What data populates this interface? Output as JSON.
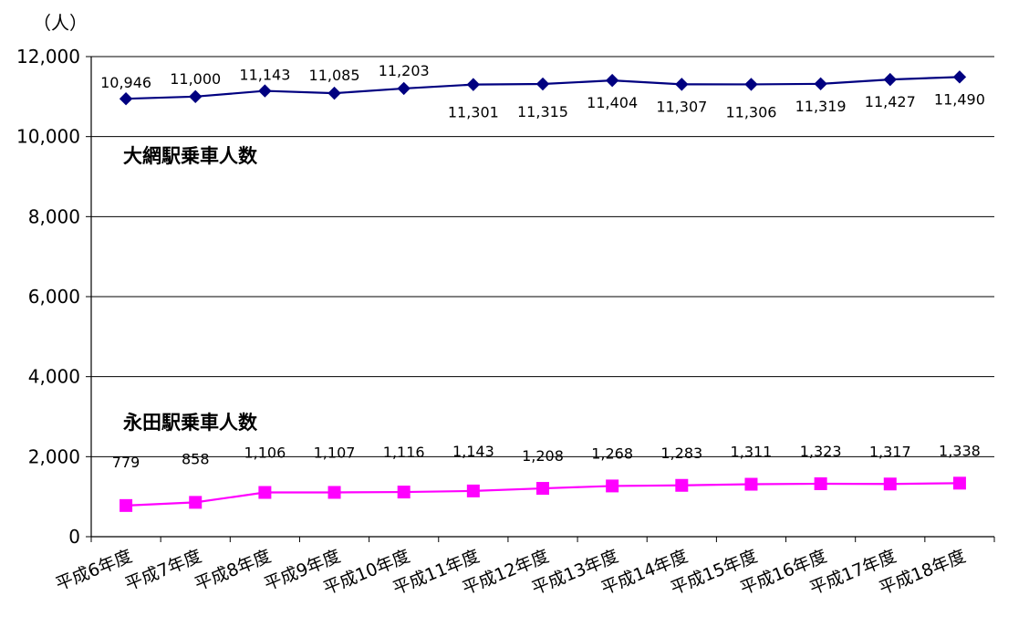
{
  "chart_data": {
    "type": "line",
    "unit_label": "（人）",
    "y_ticks": [
      "0",
      "2,000",
      "4,000",
      "6,000",
      "8,000",
      "10,000",
      "12,000"
    ],
    "ylim": [
      0,
      12000
    ],
    "grid": true,
    "categories": [
      "平成6年度",
      "平成7年度",
      "平成8年度",
      "平成9年度",
      "平成10年度",
      "平成11年度",
      "平成12年度",
      "平成13年度",
      "平成14年度",
      "平成15年度",
      "平成16年度",
      "平成17年度",
      "平成18年度"
    ],
    "series": [
      {
        "name": "大網駅乗車人数",
        "color": "#000080",
        "marker": "diamond",
        "values": [
          10946,
          11000,
          11143,
          11085,
          11203,
          11301,
          11315,
          11404,
          11307,
          11306,
          11319,
          11427,
          11490
        ],
        "labels": [
          "10,946",
          "11,000",
          "11,143",
          "11,085",
          "11,203",
          "11,301",
          "11,315",
          "11,404",
          "11,307",
          "11,306",
          "11,319",
          "11,427",
          "11,490"
        ]
      },
      {
        "name": "永田駅乗車人数",
        "color": "#ff00ff",
        "marker": "square",
        "values": [
          779,
          858,
          1106,
          1107,
          1116,
          1143,
          1208,
          1268,
          1283,
          1311,
          1323,
          1317,
          1338
        ],
        "labels": [
          "779",
          "858",
          "1,106",
          "1,107",
          "1,116",
          "1,143",
          "1,208",
          "1,268",
          "1,283",
          "1,311",
          "1,323",
          "1,317",
          "1,338"
        ]
      }
    ]
  }
}
